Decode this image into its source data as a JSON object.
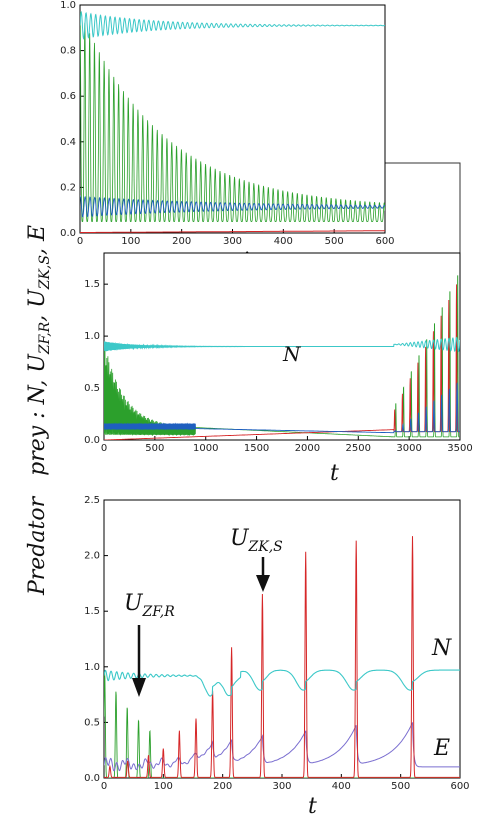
{
  "figure": {
    "ylabel_prey": "prey : N, U",
    "ylabel_predator": "Predator",
    "ylabel_sub1": "ZF,R",
    "ylabel_sub2": "ZK,S",
    "ylabel_tail": ", E"
  },
  "chart_data": [
    {
      "id": "inset",
      "type": "line",
      "xlim": [
        0,
        600
      ],
      "ylim": [
        0,
        1.0
      ],
      "xticks": [
        "0",
        "100",
        "200",
        "300",
        "400",
        "500",
        "600"
      ],
      "yticks": [
        "0.0",
        "0.2",
        "0.4",
        "0.6",
        "0.8",
        "1.0"
      ],
      "grid": false,
      "series": [
        {
          "color": "#3cc8c8",
          "description": "N: oscillates around 0.91 with decaying amplitude, ~0.86 to 1.0 at start"
        },
        {
          "color": "#2ca02c",
          "description": "fast oscillation, envelope peak decaying from ~0.97 at t=0 to ~0.16 at t=600, troughs near 0.05"
        },
        {
          "color": "#1f5fbf",
          "description": "fast oscillation between ~0.08 and ~0.17, slowly converging to ~0.11"
        },
        {
          "color": "#d62728",
          "description": "near zero, rising slowly to ~0.01"
        }
      ]
    },
    {
      "id": "prey",
      "type": "line",
      "xlim": [
        0,
        3500
      ],
      "ylim": [
        0,
        1.8
      ],
      "xticks": [
        "0",
        "500",
        "1000",
        "1500",
        "2000",
        "2500",
        "3000",
        "3500"
      ],
      "yticks": [
        "0.0",
        "0.5",
        "1.0",
        "1.5"
      ],
      "xlabel": "t",
      "annotation": "N",
      "grid": false,
      "series": [
        {
          "color": "#3cc8c8",
          "description": "N ~0.90 steady, oscillating 0.85-1.0 after t=2850"
        },
        {
          "color": "#2ca02c",
          "description": "decaying oscillation 0.95->0.12 until t~800, slowly to ~0.03 at t=2900, spikes up to 1.65 after t=2900"
        },
        {
          "color": "#1f5fbf",
          "description": "oscillates ~0.15 early, ~0.1 plateau, then purple spikes after 2900"
        },
        {
          "color": "#d62728",
          "description": "slowly rises from 0 to ~0.1 by t=2800, then spikes up to 1.5 after t=2900"
        }
      ]
    },
    {
      "id": "predator",
      "type": "line",
      "xlim": [
        0,
        600
      ],
      "ylim": [
        0,
        2.5
      ],
      "xticks": [
        "0",
        "100",
        "200",
        "300",
        "400",
        "500",
        "600"
      ],
      "yticks": [
        "0.0",
        "0.5",
        "1.0",
        "1.5",
        "2.0",
        "2.5"
      ],
      "xlabel": "t",
      "annotations": [
        {
          "text": "U",
          "sub": "ZF,R",
          "points_to": {
            "x": 55,
            "y": 0.5
          }
        },
        {
          "text": "U",
          "sub": "ZK,S",
          "points_to": {
            "x": 265,
            "y": 1.65
          }
        },
        {
          "text": "N"
        },
        {
          "text": "E"
        }
      ],
      "series": [
        {
          "color": "#3cc8c8",
          "description": "N ~0.92 with small oscillations, then dips to ~0.8 before each red spike, recovering to ~0.98"
        },
        {
          "color": "#2ca02c",
          "description": "spikes decaying from 0.97 at t~5 to ~0.35 at t~70, then vanishes"
        },
        {
          "color": "#d62728",
          "spike_times": [
            10,
            40,
            75,
            100,
            127,
            155,
            183,
            215,
            267,
            340,
            425,
            520
          ],
          "spike_heights": [
            0.1,
            0.15,
            0.2,
            0.26,
            0.42,
            0.53,
            0.78,
            1.17,
            1.65,
            2.03,
            2.13,
            2.17
          ]
        },
        {
          "color": "#7b6fd0",
          "description": "E: small bumps ~0.15 early, growing hump before each red spike up to ~0.45"
        }
      ]
    }
  ]
}
